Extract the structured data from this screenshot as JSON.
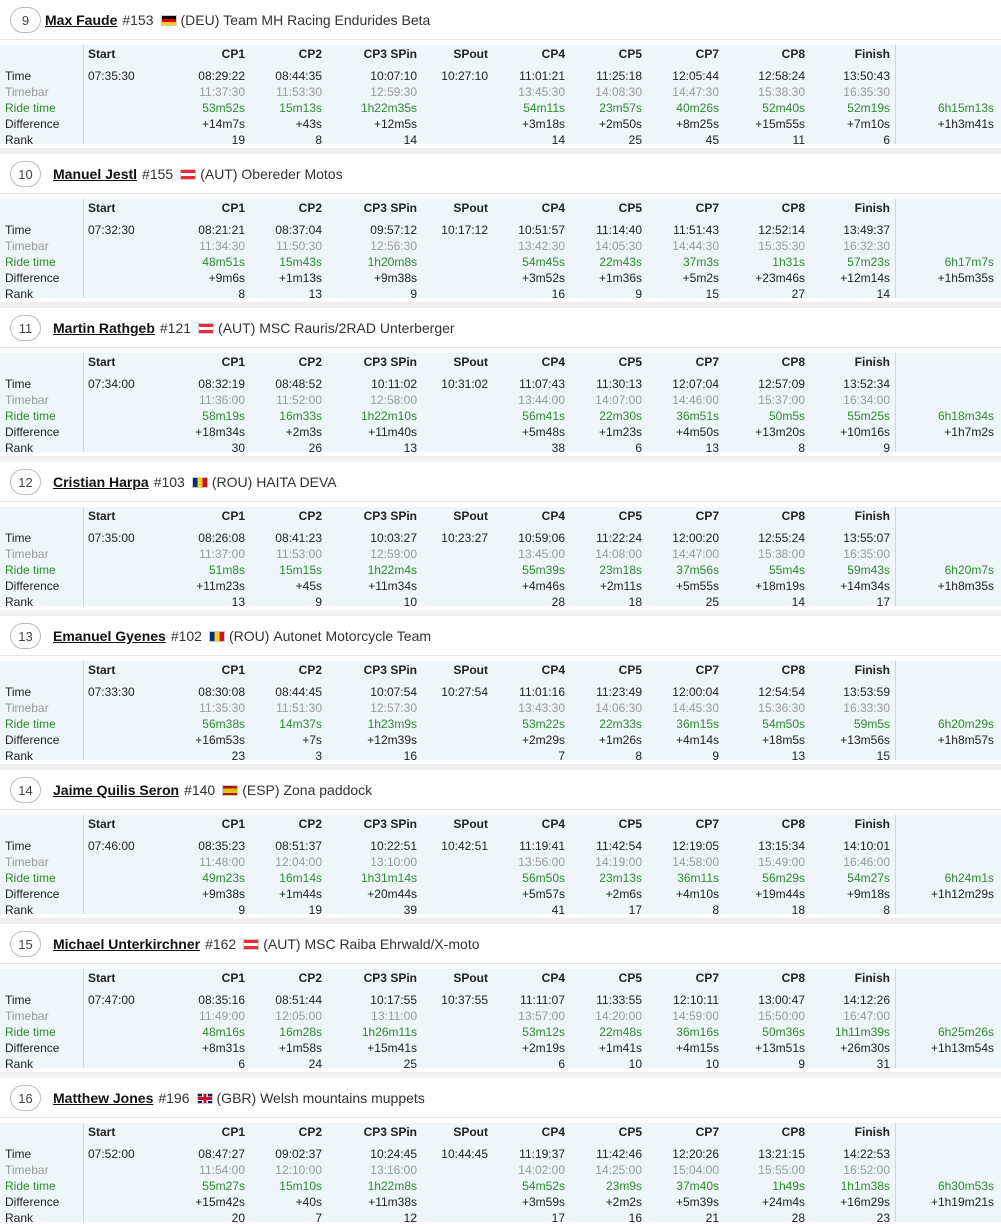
{
  "columns": [
    "Start",
    "CP1",
    "CP2",
    "CP3 SPin",
    "SPout",
    "CP4",
    "CP5",
    "CP7",
    "CP8",
    "Finish"
  ],
  "row_labels": [
    "Time",
    "Timebar",
    "Ride time",
    "Difference",
    "Rank"
  ],
  "riders": [
    {
      "pos": "9",
      "name": "Max Faude",
      "number": "#153",
      "flag": "DEU",
      "country": "(DEU)",
      "team": "Team MH Racing Endurides Beta",
      "time": [
        "07:35:30",
        "08:29:22",
        "08:44:35",
        "10:07:10",
        "10:27:10",
        "11:01:21",
        "11:25:18",
        "12:05:44",
        "12:58:24",
        "13:50:43"
      ],
      "timebar": [
        "11:37:30",
        "11:53:30",
        "12:59:30",
        "13:45:30",
        "14:08:30",
        "14:47:30",
        "15:38:30",
        "16:35:30"
      ],
      "ride": [
        "53m52s",
        "15m13s",
        "1h22m35s",
        "54m11s",
        "23m57s",
        "40m26s",
        "52m40s",
        "52m19s"
      ],
      "diff": [
        "+14m7s",
        "+43s",
        "+12m5s",
        "+3m18s",
        "+2m50s",
        "+8m25s",
        "+15m55s",
        "+7m10s"
      ],
      "rank": [
        "19",
        "8",
        "14",
        "14",
        "25",
        "45",
        "11",
        "6"
      ],
      "total_ride": "6h15m13s",
      "total_diff": "+1h3m41s"
    },
    {
      "pos": "10",
      "name": "Manuel Jestl",
      "number": "#155",
      "flag": "AUT",
      "country": "(AUT)",
      "team": "Obereder Motos",
      "time": [
        "07:32:30",
        "08:21:21",
        "08:37:04",
        "09:57:12",
        "10:17:12",
        "10:51:57",
        "11:14:40",
        "11:51:43",
        "12:52:14",
        "13:49:37"
      ],
      "timebar": [
        "11:34:30",
        "11:50:30",
        "12:56:30",
        "13:42:30",
        "14:05:30",
        "14:44:30",
        "15:35:30",
        "16:32:30"
      ],
      "ride": [
        "48m51s",
        "15m43s",
        "1h20m8s",
        "54m45s",
        "22m43s",
        "37m3s",
        "1h31s",
        "57m23s"
      ],
      "diff": [
        "+9m6s",
        "+1m13s",
        "+9m38s",
        "+3m52s",
        "+1m36s",
        "+5m2s",
        "+23m46s",
        "+12m14s"
      ],
      "rank": [
        "8",
        "13",
        "9",
        "16",
        "9",
        "15",
        "27",
        "14"
      ],
      "total_ride": "6h17m7s",
      "total_diff": "+1h5m35s"
    },
    {
      "pos": "11",
      "name": "Martin Rathgeb",
      "number": "#121",
      "flag": "AUT",
      "country": "(AUT)",
      "team": "MSC Rauris/2RAD Unterberger",
      "time": [
        "07:34:00",
        "08:32:19",
        "08:48:52",
        "10:11:02",
        "10:31:02",
        "11:07:43",
        "11:30:13",
        "12:07:04",
        "12:57:09",
        "13:52:34"
      ],
      "timebar": [
        "11:36:00",
        "11:52:00",
        "12:58:00",
        "13:44:00",
        "14:07:00",
        "14:46:00",
        "15:37:00",
        "16:34:00"
      ],
      "ride": [
        "58m19s",
        "16m33s",
        "1h22m10s",
        "56m41s",
        "22m30s",
        "36m51s",
        "50m5s",
        "55m25s"
      ],
      "diff": [
        "+18m34s",
        "+2m3s",
        "+11m40s",
        "+5m48s",
        "+1m23s",
        "+4m50s",
        "+13m20s",
        "+10m16s"
      ],
      "rank": [
        "30",
        "26",
        "13",
        "38",
        "6",
        "13",
        "8",
        "9"
      ],
      "total_ride": "6h18m34s",
      "total_diff": "+1h7m2s"
    },
    {
      "pos": "12",
      "name": "Cristian Harpa",
      "number": "#103",
      "flag": "ROU",
      "country": "(ROU)",
      "team": "HAITA DEVA",
      "time": [
        "07:35:00",
        "08:26:08",
        "08:41:23",
        "10:03:27",
        "10:23:27",
        "10:59:06",
        "11:22:24",
        "12:00:20",
        "12:55:24",
        "13:55:07"
      ],
      "timebar": [
        "11:37:00",
        "11:53:00",
        "12:59:00",
        "13:45:00",
        "14:08:00",
        "14:47:00",
        "15:38:00",
        "16:35:00"
      ],
      "ride": [
        "51m8s",
        "15m15s",
        "1h22m4s",
        "55m39s",
        "23m18s",
        "37m56s",
        "55m4s",
        "59m43s"
      ],
      "diff": [
        "+11m23s",
        "+45s",
        "+11m34s",
        "+4m46s",
        "+2m11s",
        "+5m55s",
        "+18m19s",
        "+14m34s"
      ],
      "rank": [
        "13",
        "9",
        "10",
        "28",
        "18",
        "25",
        "14",
        "17"
      ],
      "total_ride": "6h20m7s",
      "total_diff": "+1h8m35s"
    },
    {
      "pos": "13",
      "name": "Emanuel Gyenes",
      "number": "#102",
      "flag": "ROU",
      "country": "(ROU)",
      "team": "Autonet Motorcycle Team",
      "time": [
        "07:33:30",
        "08:30:08",
        "08:44:45",
        "10:07:54",
        "10:27:54",
        "11:01:16",
        "11:23:49",
        "12:00:04",
        "12:54:54",
        "13:53:59"
      ],
      "timebar": [
        "11:35:30",
        "11:51:30",
        "12:57:30",
        "13:43:30",
        "14:06:30",
        "14:45:30",
        "15:36:30",
        "16:33:30"
      ],
      "ride": [
        "56m38s",
        "14m37s",
        "1h23m9s",
        "53m22s",
        "22m33s",
        "36m15s",
        "54m50s",
        "59m5s"
      ],
      "diff": [
        "+16m53s",
        "+7s",
        "+12m39s",
        "+2m29s",
        "+1m26s",
        "+4m14s",
        "+18m5s",
        "+13m56s"
      ],
      "rank": [
        "23",
        "3",
        "16",
        "7",
        "8",
        "9",
        "13",
        "15"
      ],
      "total_ride": "6h20m29s",
      "total_diff": "+1h8m57s"
    },
    {
      "pos": "14",
      "name": "Jaime Quilis Seron",
      "number": "#140",
      "flag": "ESP",
      "country": "(ESP)",
      "team": "Zona paddock",
      "time": [
        "07:46:00",
        "08:35:23",
        "08:51:37",
        "10:22:51",
        "10:42:51",
        "11:19:41",
        "11:42:54",
        "12:19:05",
        "13:15:34",
        "14:10:01"
      ],
      "timebar": [
        "11:48:00",
        "12:04:00",
        "13:10:00",
        "13:56:00",
        "14:19:00",
        "14:58:00",
        "15:49:00",
        "16:46:00"
      ],
      "ride": [
        "49m23s",
        "16m14s",
        "1h31m14s",
        "56m50s",
        "23m13s",
        "36m11s",
        "56m29s",
        "54m27s"
      ],
      "diff": [
        "+9m38s",
        "+1m44s",
        "+20m44s",
        "+5m57s",
        "+2m6s",
        "+4m10s",
        "+19m44s",
        "+9m18s"
      ],
      "rank": [
        "9",
        "19",
        "39",
        "41",
        "17",
        "8",
        "18",
        "8"
      ],
      "total_ride": "6h24m1s",
      "total_diff": "+1h12m29s"
    },
    {
      "pos": "15",
      "name": "Michael Unterkirchner",
      "number": "#162",
      "flag": "AUT",
      "country": "(AUT)",
      "team": "MSC Raiba Ehrwald/X-moto",
      "time": [
        "07:47:00",
        "08:35:16",
        "08:51:44",
        "10:17:55",
        "10:37:55",
        "11:11:07",
        "11:33:55",
        "12:10:11",
        "13:00:47",
        "14:12:26"
      ],
      "timebar": [
        "11:49:00",
        "12:05:00",
        "13:11:00",
        "13:57:00",
        "14:20:00",
        "14:59:00",
        "15:50:00",
        "16:47:00"
      ],
      "ride": [
        "48m16s",
        "16m28s",
        "1h26m11s",
        "53m12s",
        "22m48s",
        "36m16s",
        "50m36s",
        "1h11m39s"
      ],
      "diff": [
        "+8m31s",
        "+1m58s",
        "+15m41s",
        "+2m19s",
        "+1m41s",
        "+4m15s",
        "+13m51s",
        "+26m30s"
      ],
      "rank": [
        "6",
        "24",
        "25",
        "6",
        "10",
        "10",
        "9",
        "31"
      ],
      "total_ride": "6h25m26s",
      "total_diff": "+1h13m54s"
    },
    {
      "pos": "16",
      "name": "Matthew Jones",
      "number": "#196",
      "flag": "GBR",
      "country": "(GBR)",
      "team": "Welsh mountains muppets",
      "time": [
        "07:52:00",
        "08:47:27",
        "09:02:37",
        "10:24:45",
        "10:44:45",
        "11:19:37",
        "11:42:46",
        "12:20:26",
        "13:21:15",
        "14:22:53"
      ],
      "timebar": [
        "11:54:00",
        "12:10:00",
        "13:16:00",
        "14:02:00",
        "14:25:00",
        "15:04:00",
        "15:55:00",
        "16:52:00"
      ],
      "ride": [
        "55m27s",
        "15m10s",
        "1h22m8s",
        "54m52s",
        "23m9s",
        "37m40s",
        "1h49s",
        "1h1m38s"
      ],
      "diff": [
        "+15m42s",
        "+40s",
        "+11m38s",
        "+3m59s",
        "+2m2s",
        "+5m39s",
        "+24m4s",
        "+16m29s"
      ],
      "rank": [
        "20",
        "7",
        "12",
        "17",
        "16",
        "21",
        "28",
        "23"
      ],
      "total_ride": "6h30m53s",
      "total_diff": "+1h19m21s"
    }
  ]
}
